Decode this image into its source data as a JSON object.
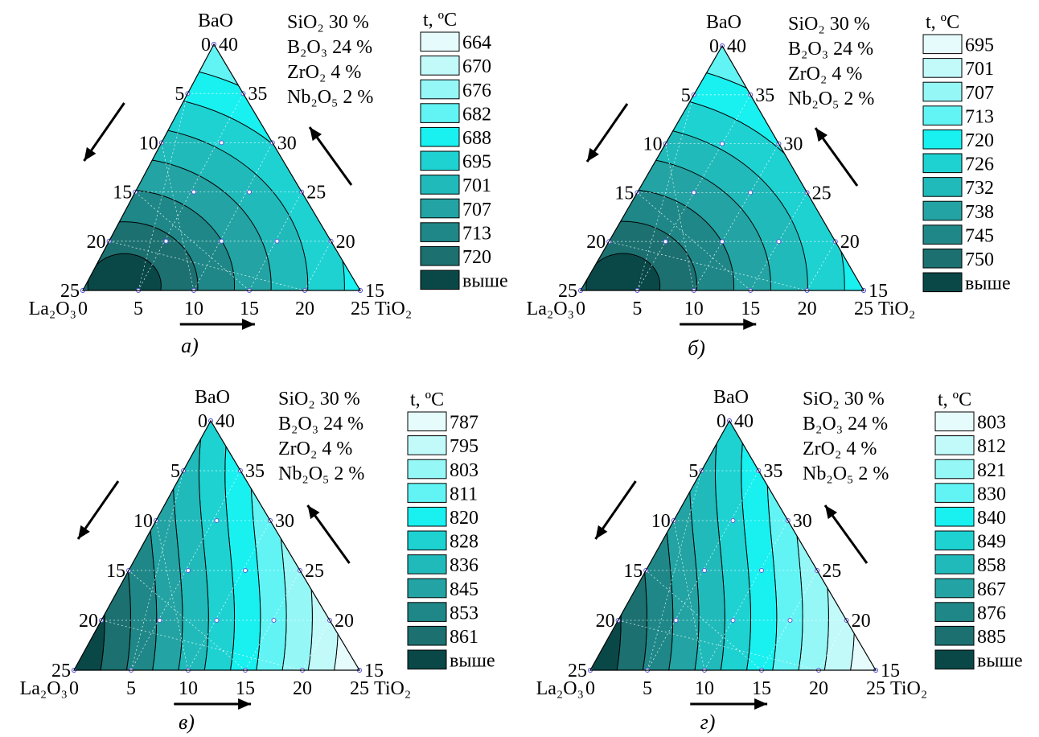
{
  "figure": {
    "panels": [
      {
        "caption": "а)",
        "composition": [
          "SiO₂ 30 %",
          "B₂O₃ 24 %",
          "ZrO₂ 4 %",
          "Nb₂O₅ 2 %"
        ],
        "legend_title": "t, ºC",
        "legend_levels": [
          "664",
          "670",
          "676",
          "682",
          "688",
          "695",
          "701",
          "707",
          "713",
          "720",
          "выше"
        ]
      },
      {
        "caption": "б)",
        "composition": [
          "SiO₂ 30 %",
          "B₂O₃ 24 %",
          "ZrO₂ 4 %",
          "Nb₂O₅ 2 %"
        ],
        "legend_title": "t, ºC",
        "legend_levels": [
          "695",
          "701",
          "707",
          "713",
          "720",
          "726",
          "732",
          "738",
          "745",
          "750",
          "выше"
        ]
      },
      {
        "caption": "в)",
        "composition": [
          "SiO₂ 30 %",
          "B₂O₃ 24 %",
          "ZrO₂ 4 %",
          "Nb₂O₅ 2 %"
        ],
        "legend_title": "t, ºC",
        "legend_levels": [
          "787",
          "795",
          "803",
          "811",
          "820",
          "828",
          "836",
          "845",
          "853",
          "861",
          "выше"
        ]
      },
      {
        "caption": "г)",
        "composition": [
          "SiO₂ 30 %",
          "B₂O₃ 24 %",
          "ZrO₂ 4 %",
          "Nb₂O₅ 2 %"
        ],
        "legend_title": "t, ºC",
        "legend_levels": [
          "803",
          "812",
          "821",
          "830",
          "840",
          "849",
          "858",
          "867",
          "876",
          "885",
          "выше"
        ]
      }
    ]
  },
  "chart_data": [
    {
      "type": "heatmap",
      "subtype": "ternary-contour",
      "vertices": {
        "top": "BaO",
        "left": "La₂O₃",
        "right": "TiO₂"
      },
      "bottom_axis": {
        "label_left": "La₂O₃",
        "label_right": "TiO₂",
        "ticks": [
          "0",
          "5",
          "10",
          "15",
          "20",
          "25"
        ]
      },
      "left_axis_ticks": [
        "0",
        "5",
        "10",
        "15",
        "20",
        "25"
      ],
      "right_axis_ticks": [
        "40",
        "35",
        "30",
        "25",
        "20",
        "15"
      ],
      "levels": [
        664,
        670,
        676,
        682,
        688,
        695,
        701,
        707,
        713,
        720
      ],
      "hot_corner": "left",
      "hot_pos": [
        0.15,
        0.98
      ],
      "gradient": "radial"
    },
    {
      "type": "heatmap",
      "subtype": "ternary-contour",
      "vertices": {
        "top": "BaO",
        "left": "La₂O₃",
        "right": "TiO₂"
      },
      "bottom_axis": {
        "label_left": "La₂O₃",
        "label_right": "TiO₂",
        "ticks": [
          "0",
          "5",
          "10",
          "15",
          "20",
          "25"
        ]
      },
      "left_axis_ticks": [
        "0",
        "5",
        "10",
        "15",
        "20",
        "25"
      ],
      "right_axis_ticks": [
        "40",
        "35",
        "30",
        "25",
        "20",
        "15"
      ],
      "levels": [
        695,
        701,
        707,
        713,
        720,
        726,
        732,
        738,
        745,
        750
      ],
      "hot_corner": "left",
      "hot_pos": [
        0.15,
        0.98
      ],
      "gradient": "radial"
    },
    {
      "type": "heatmap",
      "subtype": "ternary-contour",
      "vertices": {
        "top": "BaO",
        "left": "La₂O₃",
        "right": "TiO₂"
      },
      "bottom_axis": {
        "label_left": "La₂O₃",
        "label_right": "TiO₂",
        "ticks": [
          "0",
          "5",
          "10",
          "15",
          "20",
          "25"
        ]
      },
      "left_axis_ticks": [
        "0",
        "5",
        "10",
        "15",
        "20",
        "25"
      ],
      "right_axis_ticks": [
        "40",
        "35",
        "30",
        "25",
        "20",
        "15"
      ],
      "levels": [
        787,
        795,
        803,
        811,
        820,
        828,
        836,
        845,
        853,
        861
      ],
      "hot_corner": "left",
      "gradient": "linear"
    },
    {
      "type": "heatmap",
      "subtype": "ternary-contour",
      "vertices": {
        "top": "BaO",
        "left": "La₂O₃",
        "right": "TiO₂"
      },
      "bottom_axis": {
        "label_left": "La₂O₃",
        "label_right": "TiO₂",
        "ticks": [
          "0",
          "5",
          "10",
          "15",
          "20",
          "25"
        ]
      },
      "left_axis_ticks": [
        "0",
        "5",
        "10",
        "15",
        "20",
        "25"
      ],
      "right_axis_ticks": [
        "40",
        "35",
        "30",
        "25",
        "20",
        "15"
      ],
      "levels": [
        803,
        812,
        821,
        830,
        840,
        849,
        858,
        867,
        876,
        885
      ],
      "hot_corner": "left",
      "gradient": "linear"
    }
  ],
  "palette": [
    "#e6fcfc",
    "#c2fafa",
    "#96f7f7",
    "#62f4f4",
    "#19f0f0",
    "#1ed2d2",
    "#21baba",
    "#23a3a3",
    "#1f8787",
    "#1c7070",
    "#0a4848"
  ]
}
